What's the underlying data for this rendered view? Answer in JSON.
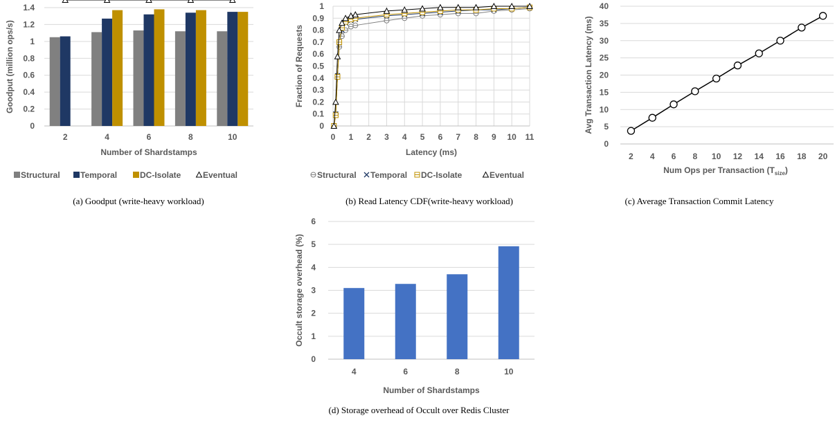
{
  "chart_data": [
    {
      "id": "a",
      "type": "bar",
      "caption": "(a) Goodput (write-heavy workload)",
      "xlabel": "Number of Shardstamps",
      "ylabel": "Goodput (million ops/s)",
      "categories": [
        "2",
        "4",
        "6",
        "8",
        "10"
      ],
      "ylim": [
        0,
        1.4
      ],
      "yticks": [
        "0",
        "0.2",
        "0.4",
        "0.6",
        "0.8",
        "1",
        "1.2",
        "1.4"
      ],
      "series": [
        {
          "name": "Structural",
          "kind": "bar",
          "color": "#808080",
          "values": [
            1.05,
            1.11,
            1.13,
            1.12,
            1.12
          ]
        },
        {
          "name": "Temporal",
          "kind": "bar",
          "color": "#1f3864",
          "values": [
            1.06,
            1.27,
            1.32,
            1.34,
            1.35
          ]
        },
        {
          "name": "DC-Isolate",
          "kind": "bar",
          "color": "#bf9000",
          "values": [
            null,
            1.37,
            1.38,
            1.37,
            1.35
          ]
        },
        {
          "name": "Eventual",
          "kind": "line",
          "marker": "triangle",
          "color": "#000000",
          "values": [
            1.49,
            1.49,
            1.49,
            1.49,
            1.49
          ]
        }
      ],
      "grid": true,
      "legend": "bottom"
    },
    {
      "id": "b",
      "type": "line",
      "caption": "(b) Read Latency CDF(write-heavy workload)",
      "xlabel": "Latency (ms)",
      "ylabel": "Fraction of Requests",
      "xlim": [
        0,
        11
      ],
      "ylim": [
        0,
        1
      ],
      "xticks": [
        "0",
        "1",
        "2",
        "3",
        "4",
        "5",
        "6",
        "7",
        "8",
        "9",
        "10",
        "11"
      ],
      "yticks": [
        "0",
        "0.1",
        "0.2",
        "0.3",
        "0.4",
        "0.5",
        "0.6",
        "0.7",
        "0.8",
        "0.9",
        "1"
      ],
      "series": [
        {
          "name": "Structural",
          "marker": "circle-bar",
          "color": "#7f7f7f",
          "x": [
            0.05,
            0.15,
            0.25,
            0.35,
            0.5,
            0.7,
            1.0,
            1.25,
            3,
            4,
            5,
            6,
            7,
            8,
            9,
            10,
            11
          ],
          "y": [
            0.0,
            0.1,
            0.42,
            0.66,
            0.75,
            0.8,
            0.83,
            0.84,
            0.88,
            0.9,
            0.92,
            0.93,
            0.94,
            0.94,
            0.96,
            0.97,
            0.98
          ]
        },
        {
          "name": "Temporal",
          "marker": "x",
          "color": "#1f3864",
          "x": [
            0.05,
            0.15,
            0.25,
            0.35,
            0.5,
            0.7,
            1.0,
            1.25,
            3,
            4,
            5,
            6,
            7,
            8,
            9,
            10,
            11
          ],
          "y": [
            0.0,
            0.1,
            0.42,
            0.7,
            0.8,
            0.86,
            0.88,
            0.89,
            0.92,
            0.93,
            0.94,
            0.95,
            0.96,
            0.97,
            0.97,
            0.98,
            0.99
          ]
        },
        {
          "name": "DC-Isolate",
          "marker": "square-bar",
          "color": "#bf9000",
          "x": [
            0.05,
            0.15,
            0.25,
            0.35,
            0.5,
            0.7,
            1.0,
            1.25,
            3,
            4,
            5,
            6,
            7,
            8,
            9,
            10,
            11
          ],
          "y": [
            0.0,
            0.09,
            0.41,
            0.7,
            0.82,
            0.87,
            0.89,
            0.9,
            0.93,
            0.94,
            0.95,
            0.96,
            0.97,
            0.97,
            0.98,
            0.98,
            0.99
          ]
        },
        {
          "name": "Eventual",
          "marker": "triangle",
          "color": "#000000",
          "x": [
            0.05,
            0.15,
            0.25,
            0.35,
            0.5,
            0.7,
            1.0,
            1.25,
            3,
            4,
            5,
            6,
            7,
            8,
            9,
            10,
            11
          ],
          "y": [
            0.0,
            0.2,
            0.58,
            0.8,
            0.86,
            0.9,
            0.92,
            0.93,
            0.96,
            0.97,
            0.98,
            0.99,
            0.99,
            0.99,
            1.0,
            1.0,
            1.0
          ]
        }
      ],
      "grid": true,
      "legend": "bottom"
    },
    {
      "id": "c",
      "type": "line",
      "caption": "(c) Average Transaction Commit Latency",
      "xlabel": "Num Ops per Transaction (T",
      "xlabel_sub": "size",
      "xlabel_suffix": ")",
      "ylabel": "Avg Transaction Latency (ms)",
      "categories": [
        "2",
        "4",
        "6",
        "8",
        "10",
        "12",
        "14",
        "16",
        "18",
        "20"
      ],
      "ylim": [
        0,
        40
      ],
      "yticks": [
        "0",
        "5",
        "10",
        "15",
        "20",
        "25",
        "30",
        "35",
        "40"
      ],
      "series": [
        {
          "name": "",
          "marker": "circle",
          "color": "#000000",
          "values": [
            3.8,
            7.6,
            11.5,
            15.3,
            19.0,
            22.8,
            26.3,
            30.0,
            33.8,
            37.2
          ]
        }
      ],
      "grid": true,
      "legend": "none"
    },
    {
      "id": "d",
      "type": "bar",
      "caption": "(d) Storage overhead of Occult over Redis Cluster",
      "xlabel": "Number of Shardstamps",
      "ylabel": "Occult storage overhead (%)",
      "categories": [
        "4",
        "6",
        "8",
        "10"
      ],
      "ylim": [
        0,
        6
      ],
      "yticks": [
        "0",
        "1",
        "2",
        "3",
        "4",
        "5",
        "6"
      ],
      "series": [
        {
          "name": "",
          "kind": "bar",
          "color": "#4472c4",
          "values": [
            3.1,
            3.28,
            3.7,
            4.92
          ]
        }
      ],
      "grid": true,
      "legend": "none"
    }
  ]
}
